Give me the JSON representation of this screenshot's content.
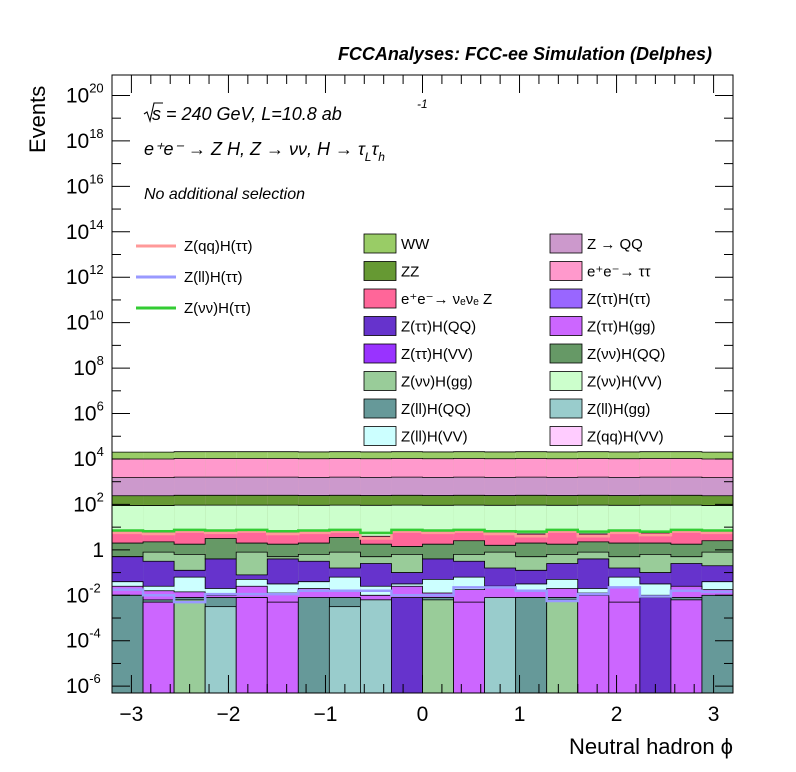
{
  "chart_data": {
    "type": "bar",
    "subtype": "stacked-histogram",
    "header": "FCCAnalyses: FCC-ee Simulation (Delphes)",
    "xlabel": "Neutral hadron ϕ",
    "ylabel": "Events",
    "xlim": [
      -3.2,
      3.2
    ],
    "ylog": true,
    "ylim_exp": [
      -6.3,
      20.9
    ],
    "x_ticks": [
      "−3",
      "−2",
      "−1",
      "0",
      "1",
      "2",
      "3"
    ],
    "x_tick_values": [
      -3,
      -2,
      -1,
      0,
      1,
      2,
      3
    ],
    "y_tick_exps": [
      -6,
      -4,
      -2,
      0,
      2,
      4,
      6,
      8,
      10,
      12,
      14,
      16,
      18,
      20
    ],
    "y_tick_labels": {
      "base": "10",
      "one": "1",
      "exps": [
        "-6",
        "-4",
        "-2",
        "",
        "2",
        "4",
        "6",
        "8",
        "10",
        "12",
        "14",
        "16",
        "18",
        "20"
      ]
    },
    "annotation": {
      "sqrt_s": "s",
      "energy_lumi": " = 240 GeV, L=10.8 ab",
      "lumi_exp": "-1",
      "process_main": "e⁺e⁻ → Z H, Z → νν, H → τ",
      "process_sub_l": "L",
      "process_tau2": "τ",
      "process_sub_h": "h",
      "selection": "No additional selection"
    },
    "n_bins": 20,
    "stack_legend": [
      {
        "label": "WW",
        "color": "#99cc66"
      },
      {
        "label": "Z → QQ",
        "color": "#cc99cc"
      },
      {
        "label": "ZZ",
        "color": "#669933"
      },
      {
        "label": "e⁺e⁻→ ττ",
        "color": "#ff99cc"
      },
      {
        "label": "e⁺e⁻→ νₑνₑ Z",
        "color": "#ff6699"
      },
      {
        "label": "Z(ττ)H(ττ)",
        "color": "#9966ff"
      },
      {
        "label": "Z(ττ)H(QQ)",
        "color": "#6633cc"
      },
      {
        "label": "Z(ττ)H(gg)",
        "color": "#cc66ff"
      },
      {
        "label": "Z(ττ)H(VV)",
        "color": "#9933ff"
      },
      {
        "label": "Z(νν)H(QQ)",
        "color": "#669966"
      },
      {
        "label": "Z(νν)H(gg)",
        "color": "#99cc99"
      },
      {
        "label": "Z(νν)H(VV)",
        "color": "#ccffcc"
      },
      {
        "label": "Z(ll)H(QQ)",
        "color": "#669999"
      },
      {
        "label": "Z(ll)H(gg)",
        "color": "#99cccc"
      },
      {
        "label": "Z(ll)H(VV)",
        "color": "#ccffff"
      },
      {
        "label": "Z(qq)H(VV)",
        "color": "#ffccff"
      }
    ],
    "stack_totals_log10": [
      {
        "name": "WW",
        "color": "#99cc66",
        "values": [
          4.3,
          4.3,
          4.32,
          4.32,
          4.32,
          4.32,
          4.31,
          4.32,
          4.31,
          4.32,
          4.31,
          4.32,
          4.31,
          4.32,
          4.31,
          4.32,
          4.31,
          4.32,
          4.32,
          4.3
        ]
      },
      {
        "name": "e+e- -> tautau",
        "color": "#ff99cc",
        "values": [
          4.0,
          4.0,
          4.02,
          4.02,
          4.02,
          4.02,
          4.01,
          4.02,
          4.01,
          4.02,
          4.01,
          4.02,
          4.01,
          4.02,
          4.01,
          4.02,
          4.01,
          4.02,
          4.02,
          4.0
        ]
      },
      {
        "name": "Z -> QQ",
        "color": "#cc99cc",
        "values": [
          3.18,
          3.18,
          3.2,
          3.2,
          3.2,
          3.2,
          3.19,
          3.2,
          3.19,
          3.2,
          3.19,
          3.2,
          3.19,
          3.2,
          3.19,
          3.2,
          3.19,
          3.2,
          3.2,
          3.18
        ]
      },
      {
        "name": "ZZ",
        "color": "#669933",
        "values": [
          2.38,
          2.38,
          2.4,
          2.4,
          2.4,
          2.4,
          2.39,
          2.4,
          2.39,
          2.4,
          2.39,
          2.4,
          2.39,
          2.4,
          2.39,
          2.4,
          2.39,
          2.4,
          2.4,
          2.38
        ]
      },
      {
        "name": "Z(nunu)H(VV)",
        "color": "#ccffcc",
        "values": [
          1.95,
          1.95,
          1.97,
          1.97,
          1.97,
          1.97,
          1.96,
          1.97,
          1.96,
          1.97,
          1.96,
          1.97,
          1.96,
          1.97,
          1.96,
          1.97,
          1.96,
          1.97,
          1.97,
          1.95
        ]
      },
      {
        "name": "e+e- -> nuenue Z",
        "color": "#ff6699",
        "values": [
          0.85,
          0.8,
          0.9,
          0.85,
          0.9,
          0.8,
          0.85,
          0.9,
          0.6,
          0.9,
          0.85,
          0.9,
          0.8,
          0.7,
          0.9,
          0.7,
          0.85,
          0.75,
          0.9,
          0.85
        ]
      },
      {
        "name": "Z(nunu)H(QQ)",
        "color": "#669966",
        "values": [
          0.3,
          0.35,
          0.25,
          0.5,
          0.3,
          0.25,
          0.3,
          0.55,
          0.25,
          0.15,
          0.25,
          0.4,
          0.2,
          0.3,
          0.25,
          0.35,
          0.3,
          0.3,
          0.25,
          0.4
        ]
      },
      {
        "name": "Z(nunu)H(gg)",
        "color": "#99cc99",
        "values": [
          -0.3,
          -0.1,
          -0.2,
          -0.4,
          -0.1,
          -0.3,
          -0.2,
          -0.1,
          -0.3,
          -0.2,
          -0.4,
          -0.2,
          -0.1,
          -0.3,
          -0.2,
          -0.1,
          -0.3,
          -0.2,
          -0.3,
          -0.1
        ]
      },
      {
        "name": "Z(tautau)H(QQ)",
        "color": "#6633cc",
        "values": [
          -0.3,
          -0.5,
          -0.9,
          -0.4,
          -1.1,
          -0.4,
          -0.5,
          -0.8,
          -0.6,
          -1.0,
          -0.4,
          -0.5,
          -0.8,
          -0.9,
          -0.6,
          -0.4,
          -0.8,
          -1.0,
          -0.6,
          -0.7
        ]
      },
      {
        "name": "Z(ll)H(VV)",
        "color": "#ccffff",
        "values": [
          -1.4,
          -1.6,
          -1.2,
          -1.7,
          -1.3,
          -1.5,
          -1.4,
          -1.2,
          -1.6,
          -1.5,
          -1.3,
          -1.2,
          -1.6,
          -1.5,
          -1.3,
          -1.7,
          -1.2,
          -1.5,
          -1.8,
          -1.4
        ]
      },
      {
        "name": "Z(tautau)H(gg)",
        "color": "#cc66ff",
        "values": [
          -1.6,
          -1.8,
          -1.85,
          -2.0,
          -1.6,
          -1.9,
          -1.7,
          -1.8,
          -2.0,
          -1.6,
          -1.9,
          -1.75,
          -1.6,
          -1.8,
          -1.7,
          -1.9,
          -1.65,
          -2.0,
          -1.6,
          -1.75
        ]
      },
      {
        "name": "Z(ll)H(QQ)",
        "color": "#669999",
        "values": [
          -2.0,
          -2.2,
          -2.1,
          -2.1,
          -2.1,
          -2.4,
          -3.0,
          -2.1,
          -4.2,
          -2.2,
          -2.1,
          -2.8,
          -2.4,
          -2.1,
          -2.1,
          -2.1,
          -3.2,
          -2.2,
          -2.1,
          -2.1
        ]
      }
    ],
    "bottom_bins": [
      {
        "name": "Z(ll)H(QQ)",
        "color": "#669999",
        "top_log10": -2.0
      },
      {
        "name": "Z(tautau)H(gg)",
        "color": "#cc66ff",
        "top_log10": -2.3
      },
      {
        "name": "Z(nunu)H(gg)",
        "color": "#99cc99",
        "top_log10": -2.2
      },
      {
        "name": "Z(ll)H(gg)",
        "color": "#99cccc",
        "top_log10": -2.5
      },
      {
        "name": "Z(tautau)H(gg)",
        "color": "#cc66ff",
        "top_log10": -2.1
      },
      {
        "name": "Z(tautau)H(gg)",
        "color": "#cc66ff",
        "top_log10": -2.3
      },
      {
        "name": "Z(ll)H(QQ)",
        "color": "#669999",
        "top_log10": -2.1
      },
      {
        "name": "Z(ll)H(gg)",
        "color": "#99cccc",
        "top_log10": -2.5
      },
      {
        "name": "Z(ll)H(gg)",
        "color": "#99cccc",
        "top_log10": -2.2
      },
      {
        "name": "Z(tautau)H(QQ)",
        "color": "#6633cc",
        "top_log10": -2.1
      },
      {
        "name": "Z(nunu)H(gg)",
        "color": "#99cc99",
        "top_log10": -2.2
      },
      {
        "name": "Z(tautau)H(gg)",
        "color": "#cc66ff",
        "top_log10": -2.3
      },
      {
        "name": "Z(ll)H(gg)",
        "color": "#99cccc",
        "top_log10": -2.1
      },
      {
        "name": "Z(ll)H(QQ)",
        "color": "#669999",
        "top_log10": -2.1
      },
      {
        "name": "Z(nunu)H(gg)",
        "color": "#99cc99",
        "top_log10": -2.2
      },
      {
        "name": "Z(tautau)H(gg)",
        "color": "#cc66ff",
        "top_log10": -2.0
      },
      {
        "name": "Z(tautau)H(gg)",
        "color": "#cc66ff",
        "top_log10": -2.3
      },
      {
        "name": "Z(tautau)H(QQ)",
        "color": "#6633cc",
        "top_log10": -2.1
      },
      {
        "name": "Z(tautau)H(gg)",
        "color": "#cc66ff",
        "top_log10": -2.2
      },
      {
        "name": "Z(ll)H(QQ)",
        "color": "#669999",
        "top_log10": -2.0
      }
    ],
    "signal_legend": [
      {
        "label": "Z(qq)H(ττ)",
        "color": "#ff9999"
      },
      {
        "label": "Z(ll)H(ττ)",
        "color": "#9999ff"
      },
      {
        "label": "Z(νν)H(ττ)",
        "color": "#33cc33"
      }
    ],
    "signal_lines": [
      {
        "name": "Z(qq)H(tautau)",
        "color": "#ff9999",
        "values": [
          0.75,
          0.7,
          0.8,
          0.75,
          0.8,
          0.7,
          0.75,
          0.8,
          0.5,
          0.8,
          0.75,
          0.8,
          0.7,
          0.6,
          0.8,
          0.6,
          0.75,
          0.65,
          0.8,
          0.75
        ]
      },
      {
        "name": "Z(ll)H(tautau)",
        "color": "#9999ff",
        "values": [
          -1.75,
          -2.0,
          -2.3,
          -1.95,
          -1.95,
          -1.95,
          -1.8,
          -1.8,
          -1.8,
          -2.0,
          -2.0,
          -1.65,
          -1.65,
          -1.8,
          -2.25,
          -1.95,
          -1.65,
          -2.05,
          -1.8,
          -1.85
        ]
      },
      {
        "name": "Z(nunu)H(tautau)",
        "color": "#33cc33",
        "values": [
          0.85,
          0.82,
          0.88,
          0.85,
          0.88,
          0.82,
          0.85,
          0.88,
          0.75,
          0.88,
          0.85,
          0.88,
          0.82,
          0.8,
          0.88,
          0.8,
          0.85,
          0.8,
          0.88,
          0.85
        ]
      }
    ]
  }
}
